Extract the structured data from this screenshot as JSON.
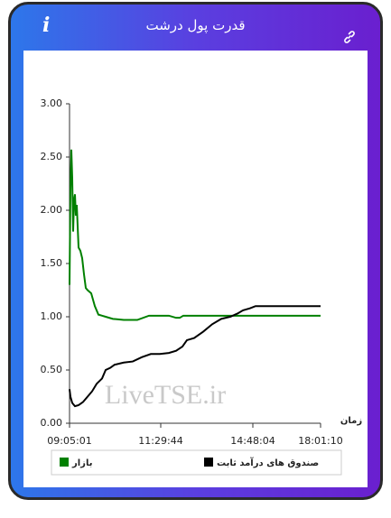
{
  "header": {
    "title": "قدرت پول درشت",
    "info": "i"
  },
  "chart_data": {
    "type": "line",
    "watermark": "LiveTSE.ir",
    "xlabel": "زمان",
    "xlim": [
      0,
      278
    ],
    "xticks": [
      {
        "value": 0,
        "label": "09:05:01"
      },
      {
        "value": 101,
        "label": "11:29:44"
      },
      {
        "value": 203,
        "label": "14:48:04"
      },
      {
        "value": 278,
        "label": "18:01:10"
      }
    ],
    "ylim": [
      0,
      3
    ],
    "yticks": [
      {
        "value": 0,
        "label": "0.00"
      },
      {
        "value": 0.5,
        "label": "0.50"
      },
      {
        "value": 1,
        "label": "1.00"
      },
      {
        "value": 1.5,
        "label": "1.50"
      },
      {
        "value": 2,
        "label": "2.00"
      },
      {
        "value": 2.5,
        "label": "2.50"
      },
      {
        "value": 3,
        "label": "3.00"
      }
    ],
    "series": [
      {
        "name": "بازار",
        "color": "#008000",
        "x": [
          0,
          1,
          2,
          3,
          4,
          5,
          6,
          7,
          8,
          10,
          12,
          14,
          16,
          18,
          20,
          24,
          28,
          32,
          36,
          40,
          48,
          60,
          75,
          88,
          98,
          110,
          118,
          122,
          126,
          133,
          278
        ],
        "values": [
          1.3,
          2.2,
          2.57,
          2.3,
          1.8,
          2.1,
          2.15,
          1.95,
          2.05,
          1.65,
          1.62,
          1.55,
          1.4,
          1.27,
          1.25,
          1.22,
          1.1,
          1.02,
          1.01,
          1.0,
          0.98,
          0.97,
          0.97,
          1.01,
          1.01,
          1.01,
          0.99,
          0.99,
          1.01,
          1.01,
          1.01
        ]
      },
      {
        "name": "صندوق های درآمد ثابت",
        "color": "#000000",
        "x": [
          0,
          1,
          3,
          6,
          10,
          15,
          20,
          25,
          30,
          36,
          40,
          45,
          50,
          60,
          70,
          80,
          90,
          100,
          110,
          118,
          125,
          130,
          138,
          148,
          158,
          168,
          178,
          186,
          192,
          200,
          206,
          212,
          220,
          278
        ],
        "values": [
          0.32,
          0.25,
          0.19,
          0.16,
          0.17,
          0.2,
          0.25,
          0.3,
          0.37,
          0.42,
          0.5,
          0.52,
          0.55,
          0.57,
          0.58,
          0.62,
          0.65,
          0.65,
          0.66,
          0.68,
          0.72,
          0.78,
          0.8,
          0.86,
          0.93,
          0.98,
          1.0,
          1.03,
          1.06,
          1.08,
          1.1,
          1.1,
          1.1,
          1.1
        ]
      }
    ]
  }
}
